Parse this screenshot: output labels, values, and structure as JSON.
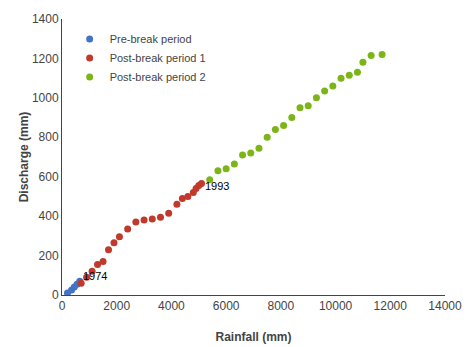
{
  "chart_data": {
    "type": "scatter",
    "xlabel": "Rainfall (mm)",
    "ylabel": "Discharge (mm)",
    "series": [
      {
        "name": "Pre-break period",
        "color": "#4472C4",
        "marker": "circle",
        "x": [
          200,
          350,
          450,
          550,
          650
        ],
        "values": [
          10,
          25,
          40,
          55,
          70
        ]
      },
      {
        "name": "Post-break period 1",
        "color": "#C0392B",
        "marker": "circle",
        "x": [
          700,
          900,
          1100,
          1300,
          1500,
          1700,
          1900,
          2100,
          2400,
          2700,
          3000,
          3300,
          3600,
          3900,
          4200,
          4400,
          4600,
          4800,
          4900,
          5000,
          5100
        ],
        "values": [
          60,
          90,
          120,
          155,
          170,
          230,
          265,
          295,
          335,
          370,
          380,
          385,
          395,
          415,
          460,
          490,
          500,
          520,
          540,
          555,
          565
        ]
      },
      {
        "name": "Post-break period 2",
        "color": "#7CB518",
        "marker": "circle",
        "x": [
          5400,
          5700,
          6000,
          6300,
          6600,
          6900,
          7200,
          7500,
          7800,
          8100,
          8400,
          8700,
          9000,
          9300,
          9600,
          9900,
          10200,
          10500,
          10800,
          11000,
          11300,
          11700
        ],
        "values": [
          585,
          630,
          640,
          665,
          710,
          720,
          745,
          800,
          840,
          860,
          900,
          950,
          960,
          1000,
          1035,
          1060,
          1100,
          1115,
          1130,
          1180,
          1215,
          1220
        ]
      }
    ],
    "annotations": [
      {
        "x": 680,
        "y": 58,
        "text": "1974"
      },
      {
        "x": 5150,
        "y": 510,
        "text": "1993"
      }
    ],
    "xlim": [
      0,
      14000
    ],
    "ylim": [
      0,
      1400
    ],
    "xticks": [
      0,
      2000,
      4000,
      6000,
      8000,
      10000,
      12000,
      14000
    ],
    "yticks": [
      0,
      200,
      400,
      600,
      800,
      1000,
      1200,
      1400
    ],
    "grid": false,
    "legend": "upper left"
  }
}
